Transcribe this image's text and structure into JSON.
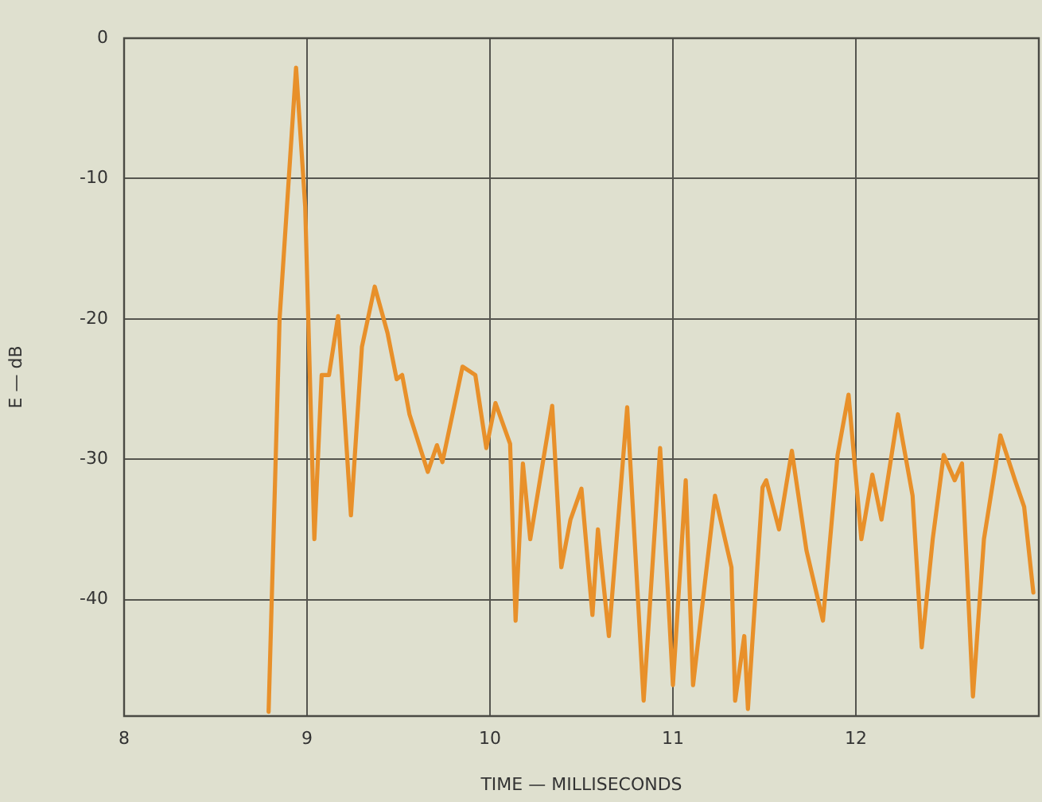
{
  "chart_data": {
    "type": "line",
    "xlabel": "TIME — MILLISECONDS",
    "ylabel": "E — dB",
    "xlim": [
      8,
      13
    ],
    "xticks": [
      8,
      9,
      10,
      11,
      12
    ],
    "ylim": [
      -48.3,
      0
    ],
    "yticks": [
      0,
      -10,
      -20,
      -30,
      -40
    ],
    "grid": true,
    "legend": false,
    "marker": "none",
    "line_style": "solid",
    "series": [
      {
        "color": "#e8902a",
        "x": [
          8.79,
          8.85,
          8.94,
          8.99,
          9.04,
          9.08,
          9.12,
          9.17,
          9.24,
          9.3,
          9.37,
          9.44,
          9.49,
          9.52,
          9.56,
          9.66,
          9.71,
          9.74,
          9.85,
          9.92,
          9.98,
          10.03,
          10.11,
          10.14,
          10.18,
          10.22,
          10.34,
          10.39,
          10.44,
          10.5,
          10.56,
          10.59,
          10.65,
          10.75,
          10.84,
          10.93,
          11.0,
          11.07,
          11.11,
          11.23,
          11.32,
          11.34,
          11.39,
          11.41,
          11.49,
          11.51,
          11.58,
          11.65,
          11.73,
          11.82,
          11.9,
          11.96,
          12.03,
          12.09,
          12.14,
          12.23,
          12.31,
          12.36,
          12.42,
          12.48,
          12.54,
          12.58,
          12.64,
          12.7,
          12.79,
          12.87,
          12.92,
          12.97
        ],
        "values": [
          -48,
          -20,
          -2.1,
          -12,
          -35.7,
          -24,
          -24,
          -19.8,
          -34,
          -22,
          -17.7,
          -21,
          -24.3,
          -24,
          -26.8,
          -30.9,
          -29,
          -30.2,
          -23.4,
          -24,
          -29.2,
          -26,
          -28.9,
          -41.5,
          -30.3,
          -35.7,
          -26.2,
          -37.7,
          -34.3,
          -32.1,
          -41.1,
          -35,
          -42.6,
          -26.3,
          -47.2,
          -29.2,
          -46.1,
          -31.5,
          -46.1,
          -32.6,
          -37.7,
          -47.2,
          -42.6,
          -47.8,
          -32,
          -31.5,
          -35,
          -29.4,
          -36.5,
          -41.5,
          -29.7,
          -25.4,
          -35.7,
          -31.1,
          -34.3,
          -26.8,
          -32.6,
          -43.4,
          -35.7,
          -29.7,
          -31.5,
          -30.3,
          -46.9,
          -35.7,
          -28.3,
          -31.5,
          -33.4,
          -39.5
        ]
      }
    ]
  }
}
